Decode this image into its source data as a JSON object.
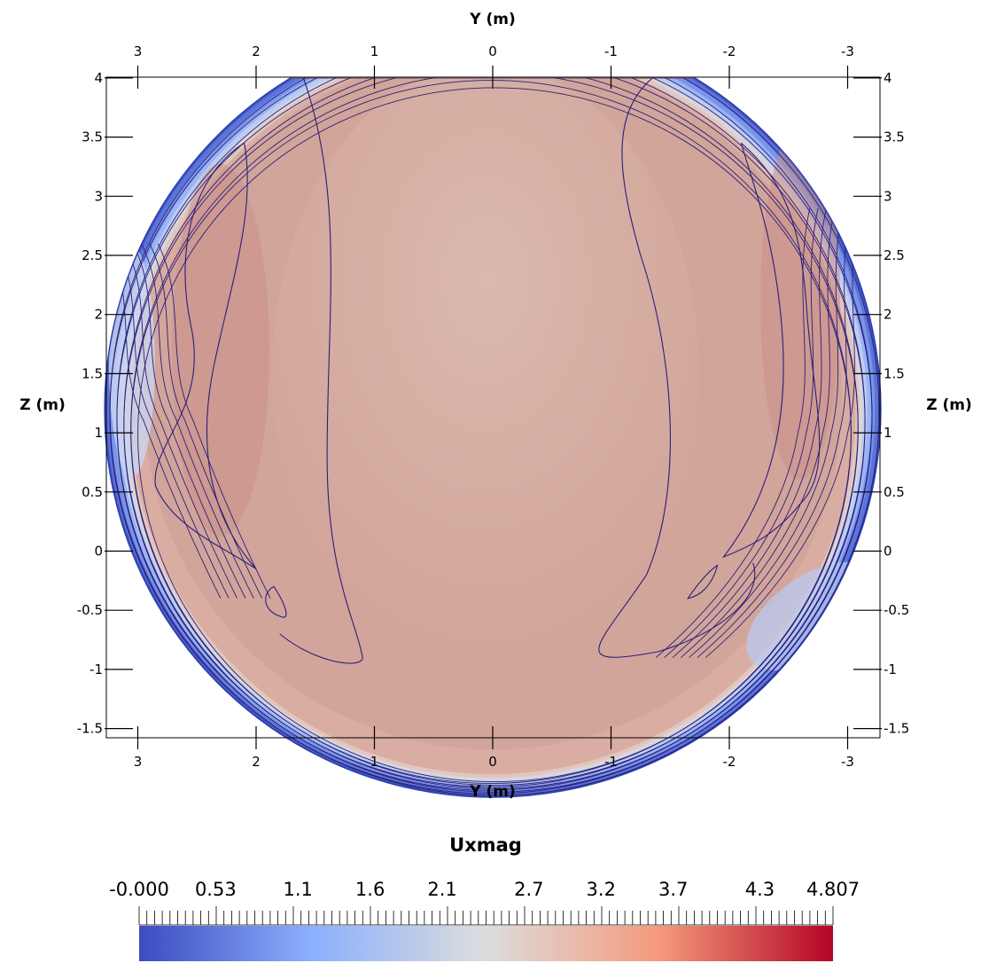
{
  "chart_data": {
    "type": "heatmap",
    "title": "",
    "x_axis": {
      "label": "Y (m)",
      "reversed": true,
      "range": [
        3.3,
        -3.3
      ],
      "ticks": [
        3,
        2,
        1,
        0,
        -1,
        -2,
        -3
      ],
      "tick_labels": [
        "3",
        "2",
        "1",
        "0",
        "-1",
        "-2",
        "-3"
      ],
      "shown": [
        "top",
        "bottom"
      ]
    },
    "y_axis": {
      "label": "Z (m)",
      "range": [
        -1.57,
        4.03
      ],
      "ticks": [
        4,
        3.5,
        3,
        2.5,
        2,
        1.5,
        1,
        0.5,
        0,
        -0.5,
        -1,
        -1.5
      ],
      "tick_labels": [
        "4",
        "3.5",
        "3",
        "2.5",
        "2",
        "1.5",
        "1",
        "0.5",
        "0",
        "-0.5",
        "-1",
        "-1.5"
      ],
      "shown": [
        "left",
        "right"
      ]
    },
    "domain": {
      "shape": "circle-truncated-top",
      "center_y": 0,
      "center_z": 1.2,
      "radius": 3.28,
      "z_top": 4.0
    },
    "field": "Uxmag",
    "colorbar": {
      "title": "Uxmag",
      "range": [
        0.0,
        4.807
      ],
      "colormap": "coolwarm",
      "colors": [
        "#3b4cc0",
        "#8db0fe",
        "#dddddd",
        "#f49a7b",
        "#b40426"
      ],
      "tick_labels": [
        "-0.000",
        "0.53",
        "1.1",
        "1.6",
        "2.1",
        "2.7",
        "3.2",
        "3.7",
        "4.3",
        "4.807"
      ],
      "tick_values": [
        0.0,
        0.53,
        1.1,
        1.6,
        2.1,
        2.7,
        3.2,
        3.7,
        4.3,
        4.807
      ],
      "placement": "bottom"
    },
    "grid": false,
    "contour_line_color": "#2a1e7a"
  }
}
